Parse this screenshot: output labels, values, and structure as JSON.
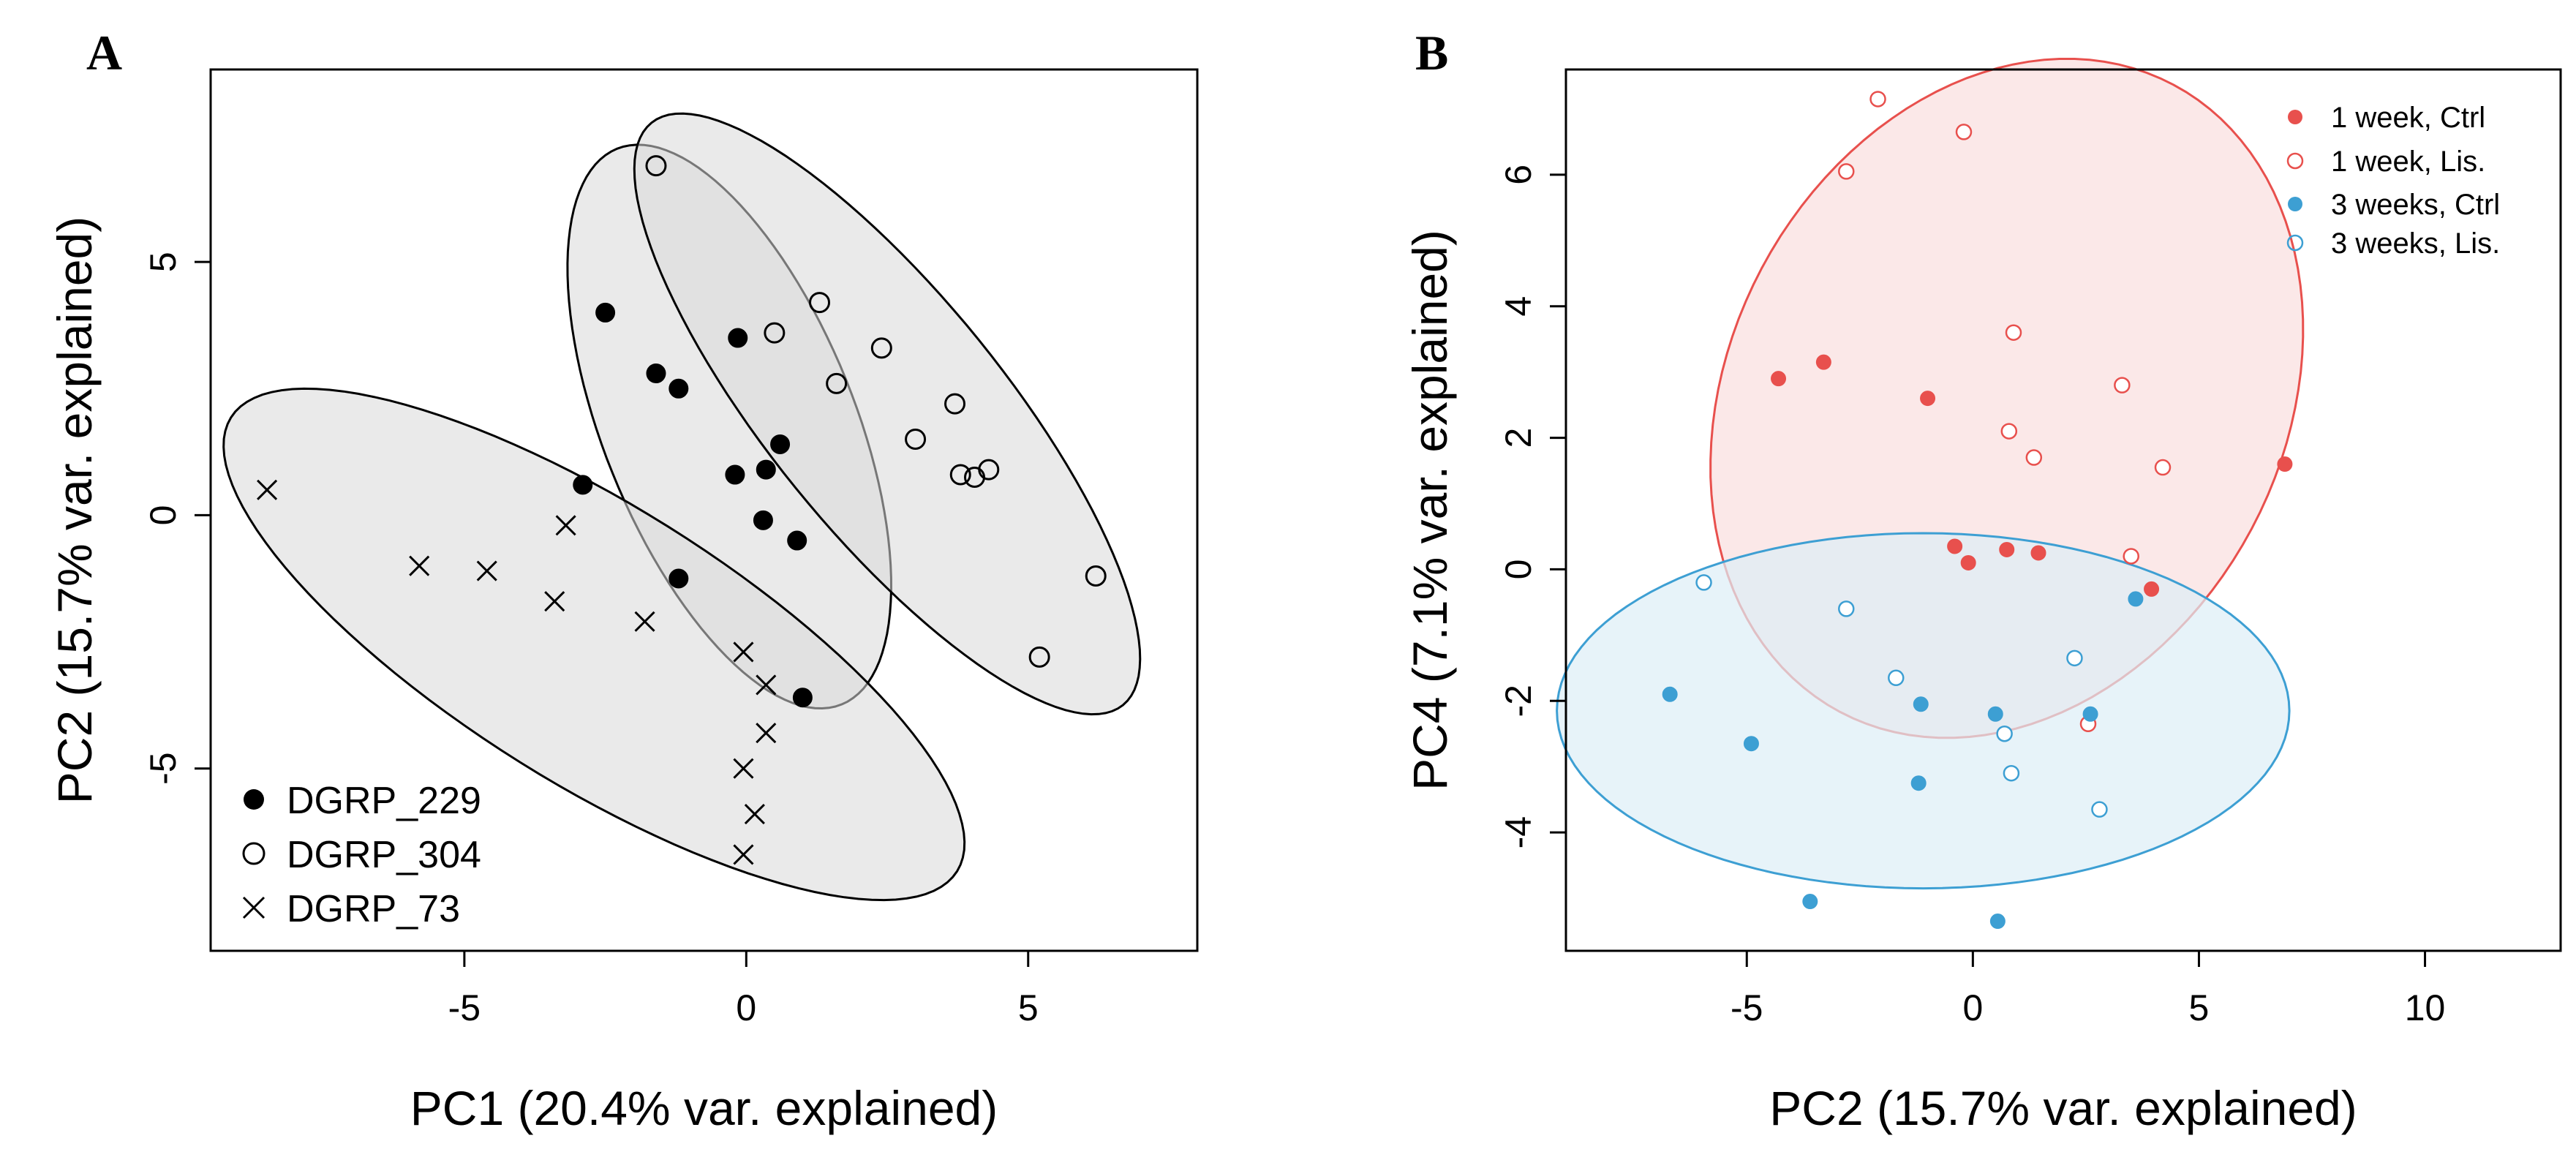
{
  "chart_data": [
    {
      "panel": "A",
      "type": "scatter",
      "xlabel": "PC1 (20.4% var. explained)",
      "ylabel": "PC2 (15.7% var. explained)",
      "xlim": [
        -9.5,
        8.0
      ],
      "ylim": [
        -8.6,
        8.8
      ],
      "xticks": [
        -5,
        0,
        5
      ],
      "yticks": [
        -5,
        0,
        5
      ],
      "xtick_labels": [
        "-5",
        "0",
        "5"
      ],
      "ytick_labels": [
        "-5",
        "0",
        "5"
      ],
      "legend_position": "bottom-left",
      "ellipse_fill": "#d9d9d9",
      "ellipse_stroke": "#000000",
      "series": [
        {
          "name": "DGRP_229",
          "marker": "filled-circle",
          "color": "#000000",
          "ellipse": {
            "cx": -0.3,
            "cy": 1.75,
            "rx": 5.6,
            "ry": 2.35,
            "angle_deg": -68
          },
          "points": [
            [
              -2.5,
              4.0
            ],
            [
              -1.6,
              2.8
            ],
            [
              -1.2,
              2.5
            ],
            [
              -0.15,
              3.5
            ],
            [
              -0.2,
              0.8
            ],
            [
              0.35,
              0.9
            ],
            [
              0.6,
              1.4
            ],
            [
              0.3,
              -0.1
            ],
            [
              0.9,
              -0.5
            ],
            [
              -1.2,
              -1.25
            ],
            [
              -2.9,
              0.6
            ],
            [
              1.0,
              -3.6
            ]
          ]
        },
        {
          "name": "DGRP_304",
          "marker": "open-circle",
          "color": "#000000",
          "ellipse": {
            "cx": 2.5,
            "cy": 2.0,
            "rx": 7.0,
            "ry": 2.2,
            "angle_deg": -51
          },
          "points": [
            [
              -1.6,
              6.9
            ],
            [
              0.5,
              3.6
            ],
            [
              1.3,
              4.2
            ],
            [
              1.6,
              2.6
            ],
            [
              2.4,
              3.3
            ],
            [
              3.0,
              1.5
            ],
            [
              3.7,
              2.2
            ],
            [
              3.8,
              0.8
            ],
            [
              4.05,
              0.75
            ],
            [
              4.3,
              0.9
            ],
            [
              6.2,
              -1.2
            ],
            [
              5.2,
              -2.8
            ]
          ]
        },
        {
          "name": "DGRP_73",
          "marker": "cross",
          "color": "#000000",
          "ellipse": {
            "cx": -2.7,
            "cy": -2.55,
            "rx": 8.0,
            "ry": 2.6,
            "angle_deg": -32
          },
          "points": [
            [
              -8.5,
              0.5
            ],
            [
              -5.8,
              -1.0
            ],
            [
              -4.6,
              -1.1
            ],
            [
              -3.4,
              -1.7
            ],
            [
              -3.2,
              -0.2
            ],
            [
              -1.8,
              -2.1
            ],
            [
              -0.05,
              -2.7
            ],
            [
              0.35,
              -3.35
            ],
            [
              0.35,
              -4.3
            ],
            [
              -0.05,
              -5.0
            ],
            [
              0.15,
              -5.9
            ],
            [
              -0.05,
              -6.7
            ]
          ]
        }
      ]
    },
    {
      "panel": "B",
      "type": "scatter",
      "xlabel": "PC2 (15.7% var. explained)",
      "ylabel": "PC4 (7.1% var. explained)",
      "xlim": [
        -9.0,
        13.0
      ],
      "ylim": [
        -5.8,
        7.6
      ],
      "xticks": [
        -5,
        0,
        5,
        10
      ],
      "yticks": [
        -4,
        -2,
        0,
        2,
        4,
        6
      ],
      "xtick_labels": [
        "-5",
        "0",
        "5",
        "10"
      ],
      "ytick_labels": [
        "-4",
        "-2",
        "0",
        "2",
        "4",
        "6"
      ],
      "legend_position": "top-right",
      "ellipses": [
        {
          "group": "1 week",
          "cx": 0.75,
          "cy": 2.6,
          "rx": 6.4,
          "ry": 5.0,
          "angle_deg": 62,
          "stroke": "#e8504d",
          "fill": "#f9e0e0",
          "fill_opacity": 0.75
        },
        {
          "group": "3 weeks",
          "cx": -1.1,
          "cy": -2.15,
          "rx": 6.6,
          "ry": 3.2,
          "angle_deg": 0,
          "stroke": "#3d9fd3",
          "fill": "#ddeef6",
          "fill_opacity": 0.7
        }
      ],
      "series": [
        {
          "name": "1 week, Ctrl",
          "marker": "filled-circle",
          "color": "#e8504d",
          "points": [
            [
              -4.3,
              2.9
            ],
            [
              -3.3,
              3.15
            ],
            [
              -1.0,
              2.6
            ],
            [
              -0.4,
              0.35
            ],
            [
              -0.1,
              0.1
            ],
            [
              0.75,
              0.3
            ],
            [
              1.45,
              0.25
            ],
            [
              3.95,
              -0.3
            ],
            [
              6.9,
              1.6
            ]
          ]
        },
        {
          "name": "1 week, Lis.",
          "marker": "open-circle",
          "color": "#e8504d",
          "points": [
            [
              -2.1,
              7.15
            ],
            [
              -2.8,
              6.05
            ],
            [
              -0.2,
              6.65
            ],
            [
              0.9,
              3.6
            ],
            [
              3.3,
              2.8
            ],
            [
              0.8,
              2.1
            ],
            [
              1.35,
              1.7
            ],
            [
              4.2,
              1.55
            ],
            [
              3.5,
              0.2
            ],
            [
              2.55,
              -2.35
            ]
          ]
        },
        {
          "name": "3 weeks, Ctrl",
          "marker": "filled-circle",
          "color": "#3d9fd3",
          "points": [
            [
              -6.7,
              -1.9
            ],
            [
              -4.9,
              -2.65
            ],
            [
              -1.15,
              -2.05
            ],
            [
              0.5,
              -2.2
            ],
            [
              -1.2,
              -3.25
            ],
            [
              3.6,
              -0.45
            ],
            [
              2.6,
              -2.2
            ],
            [
              -3.6,
              -5.05
            ],
            [
              0.55,
              -5.35
            ]
          ]
        },
        {
          "name": "3 weeks, Lis.",
          "marker": "open-circle",
          "color": "#3d9fd3",
          "points": [
            [
              -5.95,
              -0.2
            ],
            [
              -2.8,
              -0.6
            ],
            [
              -1.7,
              -1.65
            ],
            [
              2.25,
              -1.35
            ],
            [
              0.7,
              -2.5
            ],
            [
              0.85,
              -3.1
            ],
            [
              2.8,
              -3.65
            ]
          ]
        }
      ]
    }
  ]
}
